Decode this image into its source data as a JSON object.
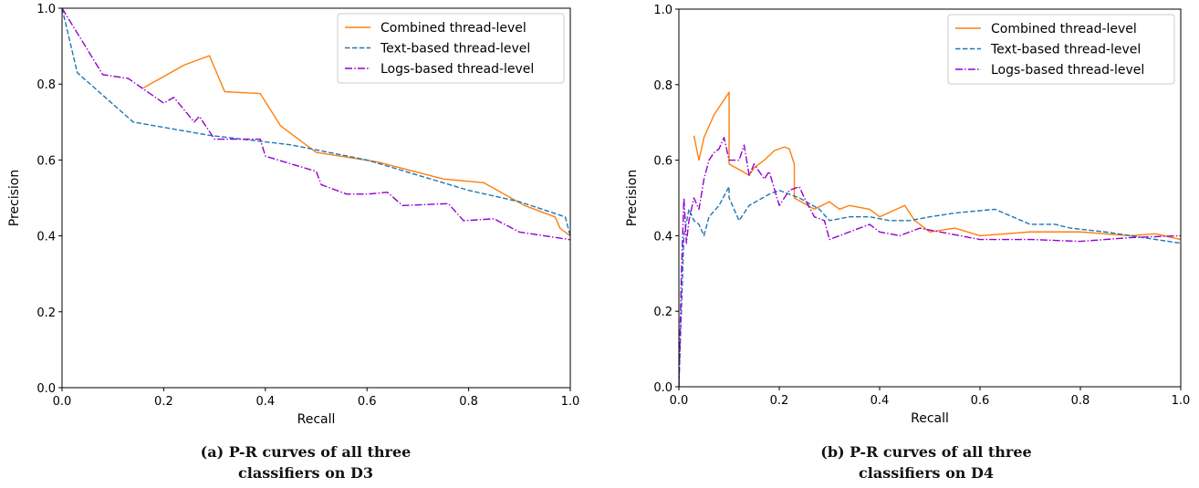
{
  "colors": {
    "combined": "#ff7f0e",
    "text": "#1f77b4",
    "logs": "#9400d3"
  },
  "chart_data": [
    {
      "type": "line",
      "title": "",
      "xlabel": "Recall",
      "ylabel": "Precision",
      "xlim": [
        0,
        1
      ],
      "ylim": [
        0,
        1
      ],
      "xticks": [
        "0.0",
        "0.2",
        "0.4",
        "0.6",
        "0.8",
        "1.0"
      ],
      "yticks": [
        "0.0",
        "0.2",
        "0.4",
        "0.6",
        "0.8",
        "1.0"
      ],
      "grid": false,
      "legend_position": "top-right",
      "caption_lines": [
        "(a) P-R curves of all three",
        "classifiers on D3"
      ],
      "series": [
        {
          "name": "Combined thread-level",
          "style": "solid",
          "color": "#ff7f0e",
          "x": [
            0.16,
            0.24,
            0.29,
            0.32,
            0.39,
            0.43,
            0.5,
            0.62,
            0.75,
            0.83,
            0.91,
            0.97,
            0.98,
            1.0
          ],
          "y": [
            0.79,
            0.85,
            0.875,
            0.78,
            0.775,
            0.69,
            0.62,
            0.595,
            0.55,
            0.54,
            0.48,
            0.45,
            0.42,
            0.4
          ]
        },
        {
          "name": "Text-based thread-level",
          "style": "dashed",
          "color": "#1f77b4",
          "x": [
            0.0,
            0.03,
            0.14,
            0.29,
            0.45,
            0.6,
            0.7,
            0.8,
            0.9,
            0.99,
            1.0
          ],
          "y": [
            1.0,
            0.83,
            0.7,
            0.665,
            0.64,
            0.6,
            0.56,
            0.52,
            0.49,
            0.45,
            0.4
          ]
        },
        {
          "name": "Logs-based thread-level",
          "style": "dashdot",
          "color": "#9400d3",
          "x": [
            0.0,
            0.08,
            0.13,
            0.2,
            0.22,
            0.26,
            0.27,
            0.3,
            0.35,
            0.39,
            0.4,
            0.5,
            0.51,
            0.56,
            0.6,
            0.64,
            0.67,
            0.76,
            0.79,
            0.85,
            0.9,
            1.0
          ],
          "y": [
            1.0,
            0.825,
            0.815,
            0.75,
            0.765,
            0.7,
            0.715,
            0.655,
            0.655,
            0.655,
            0.61,
            0.57,
            0.535,
            0.51,
            0.51,
            0.515,
            0.48,
            0.485,
            0.44,
            0.445,
            0.41,
            0.39
          ]
        }
      ]
    },
    {
      "type": "line",
      "title": "",
      "xlabel": "Recall",
      "ylabel": "Precision",
      "xlim": [
        0,
        1
      ],
      "ylim": [
        0,
        1
      ],
      "xticks": [
        "0.0",
        "0.2",
        "0.4",
        "0.6",
        "0.8",
        "1.0"
      ],
      "yticks": [
        "0.0",
        "0.2",
        "0.4",
        "0.6",
        "0.8",
        "1.0"
      ],
      "grid": false,
      "legend_position": "top-right",
      "caption_lines": [
        "(b) P-R curves of all three",
        "classifiers on D4"
      ],
      "series": [
        {
          "name": "Combined thread-level",
          "style": "solid",
          "color": "#ff7f0e",
          "x": [
            0.03,
            0.04,
            0.05,
            0.07,
            0.09,
            0.1,
            0.1,
            0.14,
            0.15,
            0.17,
            0.19,
            0.21,
            0.22,
            0.23,
            0.23,
            0.27,
            0.3,
            0.32,
            0.34,
            0.38,
            0.4,
            0.45,
            0.47,
            0.5,
            0.55,
            0.6,
            0.7,
            0.8,
            0.9,
            0.95,
            1.0
          ],
          "y": [
            0.665,
            0.6,
            0.66,
            0.72,
            0.76,
            0.78,
            0.59,
            0.56,
            0.58,
            0.6,
            0.625,
            0.635,
            0.63,
            0.59,
            0.5,
            0.47,
            0.49,
            0.47,
            0.48,
            0.47,
            0.45,
            0.48,
            0.44,
            0.41,
            0.42,
            0.4,
            0.41,
            0.41,
            0.4,
            0.405,
            0.39
          ]
        },
        {
          "name": "Text-based thread-level",
          "style": "dashed",
          "color": "#1f77b4",
          "x": [
            0.0,
            0.01,
            0.02,
            0.03,
            0.04,
            0.05,
            0.06,
            0.08,
            0.1,
            0.1,
            0.12,
            0.14,
            0.18,
            0.2,
            0.22,
            0.24,
            0.28,
            0.3,
            0.34,
            0.38,
            0.42,
            0.46,
            0.5,
            0.55,
            0.63,
            0.7,
            0.75,
            0.78,
            0.85,
            0.9,
            1.0
          ],
          "y": [
            0.0,
            0.4,
            0.47,
            0.44,
            0.43,
            0.4,
            0.45,
            0.48,
            0.53,
            0.5,
            0.44,
            0.48,
            0.51,
            0.52,
            0.51,
            0.5,
            0.47,
            0.44,
            0.45,
            0.45,
            0.44,
            0.44,
            0.45,
            0.46,
            0.47,
            0.43,
            0.43,
            0.42,
            0.41,
            0.4,
            0.38
          ]
        },
        {
          "name": "Logs-based thread-level",
          "style": "dashdot",
          "color": "#9400d3",
          "x": [
            0.0,
            0.005,
            0.01,
            0.015,
            0.02,
            0.03,
            0.04,
            0.05,
            0.06,
            0.07,
            0.08,
            0.09,
            0.1,
            0.12,
            0.13,
            0.14,
            0.15,
            0.17,
            0.18,
            0.2,
            0.22,
            0.24,
            0.25,
            0.27,
            0.29,
            0.3,
            0.34,
            0.38,
            0.4,
            0.44,
            0.48,
            0.52,
            0.56,
            0.6,
            0.7,
            0.8,
            0.9,
            1.0
          ],
          "y": [
            0.0,
            0.3,
            0.5,
            0.38,
            0.44,
            0.5,
            0.47,
            0.55,
            0.6,
            0.62,
            0.63,
            0.66,
            0.6,
            0.6,
            0.64,
            0.56,
            0.59,
            0.55,
            0.57,
            0.48,
            0.52,
            0.53,
            0.5,
            0.45,
            0.44,
            0.39,
            0.41,
            0.43,
            0.41,
            0.4,
            0.42,
            0.41,
            0.4,
            0.39,
            0.39,
            0.385,
            0.395,
            0.4
          ]
        }
      ]
    }
  ]
}
